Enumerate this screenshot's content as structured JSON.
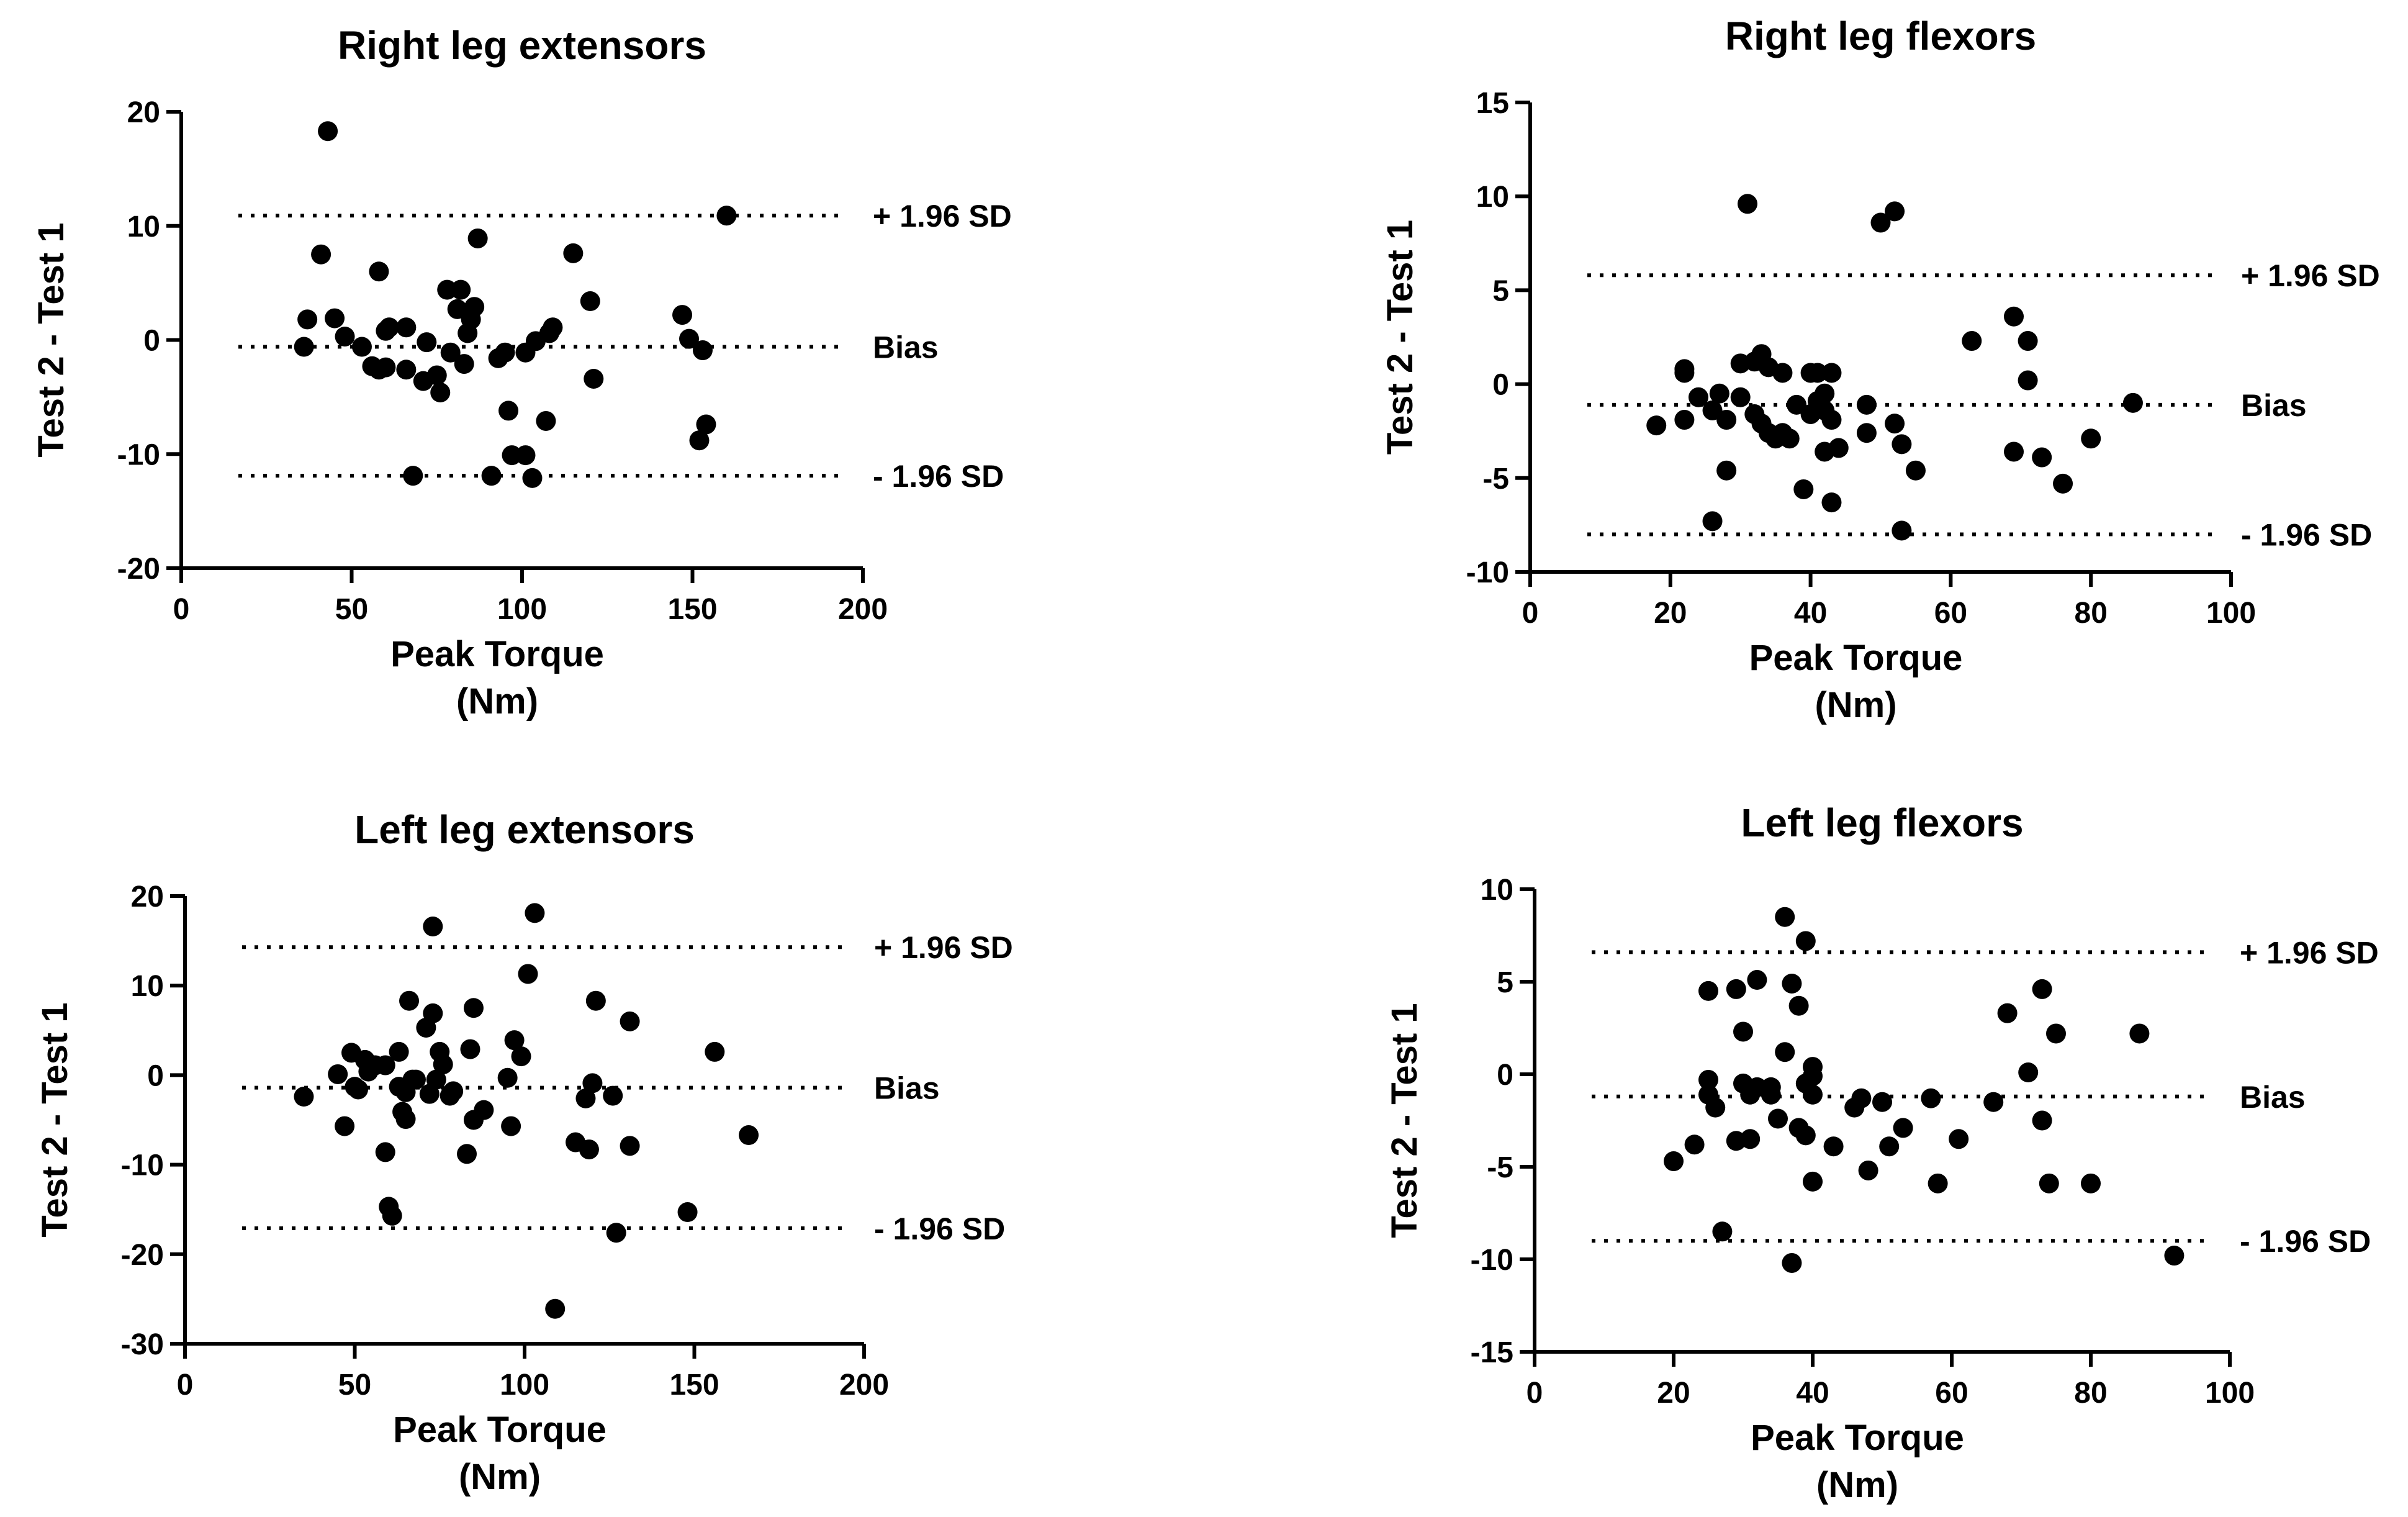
{
  "chart_data": [
    {
      "type": "scatter",
      "title": "Right leg extensors",
      "xlabel": "Peak Torque",
      "xlabel_unit": "(Nm)",
      "ylabel": "Test 2 - Test 1",
      "xlim": [
        0,
        200
      ],
      "ylim": [
        -20,
        20
      ],
      "xticks": [
        0,
        50,
        100,
        150,
        200
      ],
      "yticks": [
        -20,
        -10,
        0,
        10,
        20
      ],
      "reference_lines": [
        {
          "label": "+ 1.96 SD",
          "value": 10.9
        },
        {
          "label": "Bias",
          "value": -0.6
        },
        {
          "label": "- 1.96 SD",
          "value": -11.9
        }
      ],
      "points": [
        [
          36,
          -0.6
        ],
        [
          37,
          1.8
        ],
        [
          41,
          7.5
        ],
        [
          43,
          18.3
        ],
        [
          45,
          1.9
        ],
        [
          48,
          0.3
        ],
        [
          53,
          -0.6
        ],
        [
          56,
          -2.3
        ],
        [
          58,
          6
        ],
        [
          58,
          -2.6
        ],
        [
          60,
          -2.4
        ],
        [
          60,
          0.8
        ],
        [
          61,
          1.1
        ],
        [
          66,
          1.1
        ],
        [
          66,
          -2.6
        ],
        [
          68,
          -11.9
        ],
        [
          71,
          -3.6
        ],
        [
          72,
          -0.2
        ],
        [
          75,
          -3.1
        ],
        [
          76,
          -4.6
        ],
        [
          78,
          4.4
        ],
        [
          79,
          -1.1
        ],
        [
          81,
          2.7
        ],
        [
          82,
          4.4
        ],
        [
          83,
          -2.1
        ],
        [
          84,
          0.6
        ],
        [
          85,
          1.8
        ],
        [
          86,
          2.9
        ],
        [
          87,
          8.9
        ],
        [
          91,
          -11.9
        ],
        [
          93,
          -1.6
        ],
        [
          95,
          -1.1
        ],
        [
          96,
          -6.2
        ],
        [
          97,
          -10.1
        ],
        [
          101,
          -1.1
        ],
        [
          101,
          -10.1
        ],
        [
          103,
          -12.1
        ],
        [
          104,
          -0.1
        ],
        [
          107,
          -7.1
        ],
        [
          108,
          0.6
        ],
        [
          109,
          1.1
        ],
        [
          115,
          7.6
        ],
        [
          120,
          3.4
        ],
        [
          121,
          -3.4
        ],
        [
          147,
          2.2
        ],
        [
          149,
          0.1
        ],
        [
          152,
          -8.8
        ],
        [
          153,
          -0.9
        ],
        [
          154,
          -7.4
        ],
        [
          160,
          10.9
        ]
      ]
    },
    {
      "type": "scatter",
      "title": "Right leg flexors",
      "xlabel": "Peak Torque",
      "xlabel_unit": "(Nm)",
      "ylabel": "Test 2 - Test 1",
      "xlim": [
        0,
        100
      ],
      "ylim": [
        -10,
        15
      ],
      "xticks": [
        0,
        20,
        40,
        60,
        80,
        100
      ],
      "yticks": [
        -10,
        -5,
        0,
        5,
        10,
        15
      ],
      "reference_lines": [
        {
          "label": "+ 1.96 SD",
          "value": 5.8
        },
        {
          "label": "Bias",
          "value": -1.1
        },
        {
          "label": "- 1.96 SD",
          "value": -8
        }
      ],
      "points": [
        [
          18,
          -2.2
        ],
        [
          22,
          0.8
        ],
        [
          22,
          0.6
        ],
        [
          22,
          -1.9
        ],
        [
          24,
          -0.7
        ],
        [
          26,
          -1.4
        ],
        [
          26,
          -7.3
        ],
        [
          27,
          -0.5
        ],
        [
          28,
          -1.9
        ],
        [
          28,
          -4.6
        ],
        [
          30,
          -0.7
        ],
        [
          30,
          1.1
        ],
        [
          31,
          9.6
        ],
        [
          32,
          1.2
        ],
        [
          32,
          -1.6
        ],
        [
          33,
          1.6
        ],
        [
          33,
          -2.1
        ],
        [
          34,
          0.9
        ],
        [
          34,
          -2.6
        ],
        [
          35,
          -2.9
        ],
        [
          36,
          0.6
        ],
        [
          36,
          -2.6
        ],
        [
          37,
          -2.9
        ],
        [
          38,
          -1.1
        ],
        [
          39,
          -5.6
        ],
        [
          40,
          0.6
        ],
        [
          40,
          -1.6
        ],
        [
          41,
          -0.9
        ],
        [
          41,
          0.6
        ],
        [
          42,
          -1.4
        ],
        [
          42,
          -0.5
        ],
        [
          42,
          -3.6
        ],
        [
          43,
          -1.9
        ],
        [
          43,
          0.6
        ],
        [
          43,
          -6.3
        ],
        [
          44,
          -3.4
        ],
        [
          48,
          -1.1
        ],
        [
          48,
          -2.6
        ],
        [
          50,
          8.6
        ],
        [
          52,
          9.2
        ],
        [
          52,
          -2.1
        ],
        [
          53,
          -3.2
        ],
        [
          53,
          -7.8
        ],
        [
          55,
          -4.6
        ],
        [
          63,
          2.3
        ],
        [
          69,
          3.6
        ],
        [
          69,
          -3.6
        ],
        [
          71,
          2.3
        ],
        [
          71,
          0.2
        ],
        [
          73,
          -3.9
        ],
        [
          76,
          -5.3
        ],
        [
          80,
          -2.9
        ],
        [
          86,
          -1
        ]
      ]
    },
    {
      "type": "scatter",
      "title": "Left leg extensors",
      "xlabel": "Peak Torque",
      "xlabel_unit": "(Nm)",
      "ylabel": "Test 2 - Test 1",
      "xlim": [
        0,
        200
      ],
      "ylim": [
        -30,
        20
      ],
      "xticks": [
        0,
        50,
        100,
        150,
        200
      ],
      "yticks": [
        -30,
        -20,
        -10,
        0,
        10,
        20
      ],
      "reference_lines": [
        {
          "label": "+ 1.96 SD",
          "value": 14.3
        },
        {
          "label": "Bias",
          "value": -1.4
        },
        {
          "label": "- 1.96 SD",
          "value": -17.1
        }
      ],
      "points": [
        [
          35,
          -2.4
        ],
        [
          45,
          0.1
        ],
        [
          47,
          -5.7
        ],
        [
          49,
          2.5
        ],
        [
          50,
          -1.3
        ],
        [
          51,
          -1.6
        ],
        [
          53,
          1.7
        ],
        [
          54,
          0.4
        ],
        [
          56,
          1.1
        ],
        [
          59,
          1.1
        ],
        [
          59,
          -8.6
        ],
        [
          60,
          -14.7
        ],
        [
          61,
          -15.7
        ],
        [
          63,
          -1.3
        ],
        [
          63,
          2.6
        ],
        [
          64,
          -4.1
        ],
        [
          65,
          -1.9
        ],
        [
          65,
          -4.9
        ],
        [
          66,
          8.3
        ],
        [
          67,
          -0.5
        ],
        [
          68,
          -0.5
        ],
        [
          71,
          5.3
        ],
        [
          72,
          -2.1
        ],
        [
          73,
          16.6
        ],
        [
          73,
          6.9
        ],
        [
          74,
          -0.5
        ],
        [
          75,
          2.6
        ],
        [
          76,
          1.2
        ],
        [
          78,
          -2.3
        ],
        [
          79,
          -1.8
        ],
        [
          83,
          -8.8
        ],
        [
          84,
          2.9
        ],
        [
          85,
          7.5
        ],
        [
          85,
          -5
        ],
        [
          88,
          -3.9
        ],
        [
          95,
          -0.3
        ],
        [
          96,
          -5.7
        ],
        [
          97,
          3.9
        ],
        [
          99,
          2.1
        ],
        [
          101,
          11.3
        ],
        [
          103,
          18.1
        ],
        [
          109,
          -26.1
        ],
        [
          115,
          -7.5
        ],
        [
          118,
          -2.6
        ],
        [
          119,
          -8.3
        ],
        [
          120,
          -0.9
        ],
        [
          121,
          8.3
        ],
        [
          126,
          -2.3
        ],
        [
          127,
          -17.6
        ],
        [
          131,
          6
        ],
        [
          131,
          -7.9
        ],
        [
          148,
          -15.3
        ],
        [
          156,
          2.6
        ],
        [
          166,
          -6.7
        ]
      ]
    },
    {
      "type": "scatter",
      "title": "Left leg flexors",
      "xlabel": "Peak Torque",
      "xlabel_unit": "(Nm)",
      "ylabel": "Test 2 - Test 1",
      "xlim": [
        0,
        100
      ],
      "ylim": [
        -15,
        10
      ],
      "xticks": [
        0,
        20,
        40,
        60,
        80,
        100
      ],
      "yticks": [
        -15,
        -10,
        -5,
        0,
        5,
        10
      ],
      "reference_lines": [
        {
          "label": "+ 1.96 SD",
          "value": 6.6
        },
        {
          "label": "Bias",
          "value": -1.2
        },
        {
          "label": "- 1.96 SD",
          "value": -9
        }
      ],
      "points": [
        [
          20,
          -4.7
        ],
        [
          23,
          -3.8
        ],
        [
          25,
          -0.3
        ],
        [
          25,
          -1.1
        ],
        [
          25,
          4.5
        ],
        [
          26,
          -1.8
        ],
        [
          27,
          -8.5
        ],
        [
          29,
          -3.6
        ],
        [
          29,
          4.6
        ],
        [
          30,
          -0.5
        ],
        [
          30,
          2.3
        ],
        [
          31,
          -1.1
        ],
        [
          31,
          -3.5
        ],
        [
          32,
          5.1
        ],
        [
          32,
          -0.7
        ],
        [
          34,
          -0.7
        ],
        [
          34,
          -1.1
        ],
        [
          35,
          -2.4
        ],
        [
          36,
          1.2
        ],
        [
          36,
          8.5
        ],
        [
          37,
          4.9
        ],
        [
          37,
          -10.2
        ],
        [
          38,
          3.7
        ],
        [
          38,
          -2.9
        ],
        [
          39,
          7.2
        ],
        [
          39,
          -3.3
        ],
        [
          39,
          -0.5
        ],
        [
          40,
          0.4
        ],
        [
          40,
          -0.1
        ],
        [
          40,
          -1.1
        ],
        [
          40,
          -5.8
        ],
        [
          43,
          -3.9
        ],
        [
          46,
          -1.8
        ],
        [
          47,
          -1.3
        ],
        [
          48,
          -5.2
        ],
        [
          50,
          -1.5
        ],
        [
          51,
          -3.9
        ],
        [
          53,
          -2.9
        ],
        [
          57,
          -1.3
        ],
        [
          58,
          -5.9
        ],
        [
          61,
          -3.5
        ],
        [
          66,
          -1.5
        ],
        [
          68,
          3.3
        ],
        [
          71,
          0.1
        ],
        [
          73,
          4.6
        ],
        [
          73,
          -2.5
        ],
        [
          74,
          -5.9
        ],
        [
          75,
          2.2
        ],
        [
          80,
          -5.9
        ],
        [
          87,
          2.2
        ],
        [
          92,
          -9.8
        ]
      ]
    }
  ]
}
